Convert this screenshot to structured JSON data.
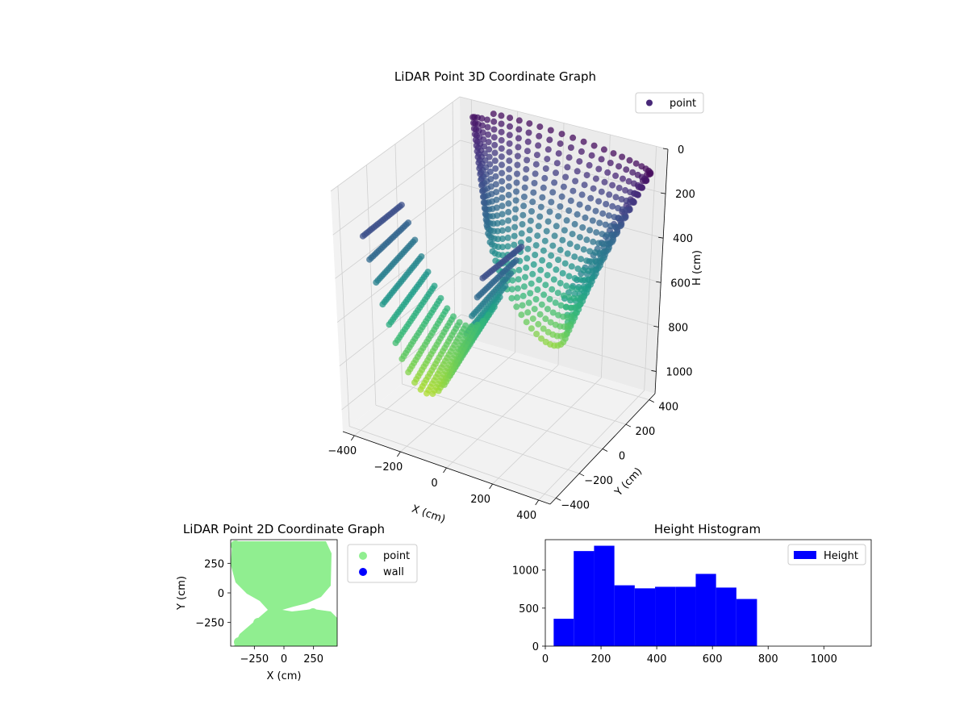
{
  "chart_data": [
    {
      "type": "scatter3d",
      "title": "LiDAR Point 3D Coordinate Graph",
      "xlabel": "X (cm)",
      "ylabel": "Y (cm)",
      "zlabel": "H (cm)",
      "xlim": [
        -450,
        450
      ],
      "ylim": [
        -450,
        450
      ],
      "zlim": [
        0,
        1100
      ],
      "z_inverted": true,
      "x_ticks": [
        "−400",
        "−200",
        "0",
        "200",
        "400"
      ],
      "y_ticks": [
        "−400",
        "−200",
        "0",
        "200",
        "400"
      ],
      "z_ticks": [
        "0",
        "200",
        "400",
        "600",
        "800",
        "1000"
      ],
      "grid": true,
      "colormap": "viridis",
      "legend": {
        "position": "top-right",
        "entries": [
          {
            "label": "point",
            "color": "#482878"
          }
        ]
      }
    },
    {
      "type": "scatter",
      "title": "LiDAR Point 2D Coordinate Graph",
      "xlabel": "X (cm)",
      "ylabel": "Y (cm)",
      "xlim": [
        -450,
        450
      ],
      "ylim": [
        -450,
        450
      ],
      "x_ticks": [
        "−250",
        "0",
        "250"
      ],
      "y_ticks": [
        "250",
        "0",
        "−250"
      ],
      "legend": {
        "position": "outside-right",
        "entries": [
          {
            "label": "point",
            "color": "#90ee90"
          },
          {
            "label": "wall",
            "color": "#0000ff"
          }
        ]
      },
      "series": [
        {
          "name": "point",
          "color": "#90ee90"
        },
        {
          "name": "wall",
          "color": "#0000ff",
          "values": []
        }
      ]
    },
    {
      "type": "bar",
      "title": "Height Histogram",
      "xlim": [
        0,
        1170
      ],
      "ylim": [
        0,
        1400
      ],
      "x_ticks": [
        "0",
        "200",
        "400",
        "600",
        "800",
        "1000"
      ],
      "y_ticks": [
        "0",
        "500",
        "1000"
      ],
      "bin_edges": [
        30,
        102,
        175,
        248,
        321,
        394,
        467,
        540,
        613,
        686,
        760
      ],
      "values": [
        360,
        1250,
        1320,
        800,
        760,
        780,
        780,
        950,
        770,
        620
      ],
      "color": "#0000ff",
      "legend": {
        "position": "top-right",
        "entries": [
          {
            "label": "Height",
            "color": "#0000ff"
          }
        ]
      }
    }
  ]
}
